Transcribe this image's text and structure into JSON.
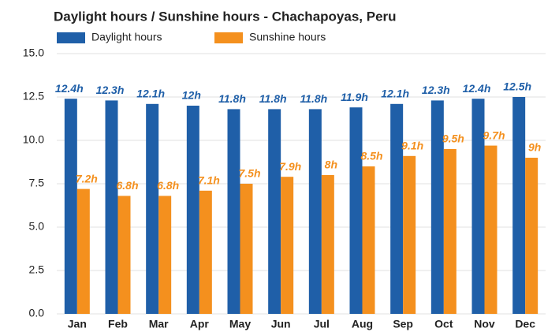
{
  "chart_data": {
    "type": "bar",
    "title": "Daylight hours / Sunshine hours - Chachapoyas, Peru",
    "categories": [
      "Jan",
      "Feb",
      "Mar",
      "Apr",
      "May",
      "Jun",
      "Jul",
      "Aug",
      "Sep",
      "Oct",
      "Nov",
      "Dec"
    ],
    "series": [
      {
        "name": "Daylight hours",
        "color": "#1f5fa8",
        "values": [
          12.4,
          12.3,
          12.1,
          12,
          11.8,
          11.8,
          11.8,
          11.9,
          12.1,
          12.3,
          12.4,
          12.5
        ],
        "value_labels": [
          "12.4h",
          "12.3h",
          "12.1h",
          "12h",
          "11.8h",
          "11.8h",
          "11.8h",
          "11.9h",
          "12.1h",
          "12.3h",
          "12.4h",
          "12.5h"
        ]
      },
      {
        "name": "Sunshine hours",
        "color": "#f4901e",
        "values": [
          7.2,
          6.8,
          6.8,
          7.1,
          7.5,
          7.9,
          8,
          8.5,
          9.1,
          9.5,
          9.7,
          9
        ],
        "value_labels": [
          "7.2h",
          "6.8h",
          "6.8h",
          "7.1h",
          "7.5h",
          "7.9h",
          "8h",
          "8.5h",
          "9.1h",
          "9.5h",
          "9.7h",
          "9h"
        ]
      }
    ],
    "ylim": [
      0,
      15
    ],
    "yticks": [
      {
        "value": 0,
        "label": "0.0"
      },
      {
        "value": 2.5,
        "label": "2.5"
      },
      {
        "value": 5,
        "label": "5.0"
      },
      {
        "value": 7.5,
        "label": "7.5"
      },
      {
        "value": 10,
        "label": "10.0"
      },
      {
        "value": 12.5,
        "label": "12.5"
      },
      {
        "value": 15,
        "label": "15.0"
      }
    ],
    "grid": true
  }
}
